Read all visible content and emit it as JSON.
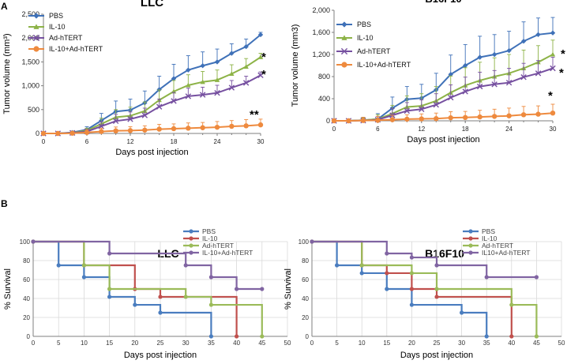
{
  "colors": {
    "pbs": "#3f71b8",
    "il10": "#8db347",
    "adhtert": "#7650a0",
    "combo": "#ee8a3e",
    "surv_pbs": "#4a7dbf",
    "surv_il10": "#c0504d",
    "surv_adhtert": "#9bbb59",
    "surv_combo": "#8064a2",
    "grid": "#d9d9d9",
    "axis": "#7f7f7f"
  },
  "panels": [
    {
      "label": "A"
    },
    {
      "label": "B"
    }
  ],
  "chart_data": [
    {
      "type": "line",
      "panel": "A",
      "title": "LLC",
      "xlabel": "Days post injection",
      "ylabel": "Tumor volume (mm³)",
      "xlim": [
        0,
        30
      ],
      "ylim": [
        0,
        2500
      ],
      "xticks": [
        "0",
        "6",
        "12",
        "18",
        "24",
        "30"
      ],
      "yticks": [
        "0",
        "500",
        "1,000",
        "1,500",
        "2,000",
        "2,500"
      ],
      "x": [
        0,
        2,
        4,
        6,
        8,
        10,
        12,
        14,
        16,
        18,
        20,
        22,
        24,
        26,
        28,
        30
      ],
      "series": [
        {
          "name": "PBS",
          "marker": "diamond",
          "values": [
            0,
            0,
            20,
            80,
            270,
            460,
            490,
            640,
            920,
            1150,
            1330,
            1420,
            1500,
            1680,
            1820,
            2070
          ],
          "err_up": [
            0,
            0,
            30,
            60,
            150,
            220,
            230,
            250,
            280,
            300,
            300,
            290,
            270,
            200,
            160,
            50
          ]
        },
        {
          "name": "IL-10",
          "marker": "triangle",
          "values": [
            0,
            0,
            15,
            60,
            200,
            340,
            370,
            470,
            700,
            880,
            1010,
            1080,
            1120,
            1250,
            1400,
            1600
          ],
          "err_up": [
            0,
            0,
            25,
            50,
            120,
            160,
            180,
            190,
            210,
            230,
            220,
            220,
            210,
            190,
            170,
            80
          ]
        },
        {
          "name": "Ad-hTERT",
          "marker": "x",
          "values": [
            0,
            0,
            12,
            40,
            150,
            260,
            300,
            380,
            560,
            680,
            780,
            810,
            850,
            960,
            1060,
            1220
          ],
          "err_up": [
            0,
            0,
            20,
            40,
            100,
            140,
            150,
            150,
            160,
            180,
            170,
            160,
            160,
            150,
            140,
            70
          ]
        },
        {
          "name": "IL-10+Ad-hTERT",
          "marker": "circle",
          "values": [
            0,
            0,
            5,
            20,
            40,
            55,
            60,
            70,
            90,
            100,
            110,
            120,
            130,
            150,
            160,
            180
          ],
          "err_up": [
            0,
            0,
            15,
            60,
            70,
            80,
            80,
            90,
            100,
            100,
            110,
            110,
            120,
            120,
            130,
            120
          ]
        }
      ],
      "annotations": [
        "*",
        "*",
        "**"
      ]
    },
    {
      "type": "line",
      "panel": "A",
      "title": "B16F10",
      "xlabel": "Days post injection",
      "ylabel": "Tumor volume (mm3)",
      "xlim": [
        0,
        30
      ],
      "ylim": [
        0,
        2000
      ],
      "xticks": [
        "0",
        "6",
        "12",
        "18",
        "24",
        "30"
      ],
      "yticks": [
        "0",
        "400",
        "800",
        "1,200",
        "1,600",
        "2,000"
      ],
      "x": [
        0,
        2,
        4,
        6,
        8,
        10,
        12,
        14,
        16,
        18,
        20,
        22,
        24,
        26,
        28,
        30
      ],
      "series": [
        {
          "name": "PBS",
          "marker": "diamond",
          "values": [
            0,
            0,
            10,
            30,
            230,
            390,
            410,
            560,
            840,
            1000,
            1150,
            1200,
            1270,
            1440,
            1560,
            1590
          ],
          "err_up": [
            0,
            0,
            50,
            100,
            200,
            230,
            250,
            300,
            350,
            380,
            380,
            360,
            350,
            350,
            300,
            280
          ]
        },
        {
          "name": "IL-10",
          "marker": "triangle",
          "values": [
            0,
            0,
            10,
            30,
            130,
            250,
            270,
            360,
            510,
            640,
            730,
            800,
            860,
            950,
            1060,
            1200
          ],
          "err_up": [
            0,
            0,
            40,
            80,
            150,
            200,
            220,
            260,
            300,
            320,
            330,
            340,
            340,
            330,
            300,
            260
          ]
        },
        {
          "name": "Ad-hTERT",
          "marker": "x",
          "values": [
            0,
            0,
            5,
            20,
            100,
            180,
            210,
            290,
            420,
            530,
            620,
            660,
            690,
            790,
            860,
            950
          ],
          "err_up": [
            0,
            0,
            30,
            60,
            120,
            150,
            170,
            200,
            230,
            260,
            260,
            250,
            260,
            250,
            230,
            200
          ]
        },
        {
          "name": "IL-10+Ad-hTERT",
          "marker": "circle",
          "values": [
            0,
            0,
            5,
            10,
            20,
            30,
            35,
            40,
            55,
            60,
            70,
            80,
            90,
            110,
            120,
            140
          ],
          "err_up": [
            0,
            0,
            60,
            70,
            80,
            80,
            90,
            100,
            110,
            110,
            120,
            130,
            140,
            150,
            150,
            160
          ]
        }
      ],
      "annotations": [
        "*",
        "*",
        "*"
      ]
    },
    {
      "type": "line",
      "panel": "B",
      "title": "LLC",
      "xlabel": "Days post injection",
      "ylabel": "% Survival",
      "xlim": [
        0,
        50
      ],
      "ylim": [
        0,
        100
      ],
      "xticks": [
        "0",
        "5",
        "10",
        "15",
        "20",
        "25",
        "30",
        "35",
        "40",
        "45",
        "50"
      ],
      "yticks": [
        "0",
        "20",
        "40",
        "60",
        "80",
        "100"
      ],
      "step": true,
      "series": [
        {
          "name": "PBS",
          "x": [
            0,
            5,
            10,
            15,
            20,
            25,
            35
          ],
          "values": [
            100,
            75,
            62.5,
            41.7,
            33.3,
            25,
            0
          ]
        },
        {
          "name": "IL-10",
          "x": [
            0,
            10,
            20,
            25,
            40
          ],
          "values": [
            100,
            75,
            50,
            41.7,
            0
          ]
        },
        {
          "name": "Ad-hTERT",
          "x": [
            0,
            10,
            15,
            30,
            35,
            45
          ],
          "values": [
            100,
            75,
            50,
            41.7,
            33.3,
            0
          ]
        },
        {
          "name": "IL-10+Ad-hTERT",
          "x": [
            0,
            15,
            30,
            35,
            40,
            45
          ],
          "values": [
            100,
            87.5,
            75,
            62.5,
            50,
            50
          ]
        }
      ]
    },
    {
      "type": "line",
      "panel": "B",
      "title": "B16F10",
      "xlabel": "Days post injection",
      "ylabel": "% Survival",
      "xlim": [
        0,
        50
      ],
      "ylim": [
        0,
        100
      ],
      "xticks": [
        "0",
        "5",
        "10",
        "15",
        "20",
        "25",
        "30",
        "35",
        "40",
        "45",
        "50"
      ],
      "yticks": [
        "0",
        "20",
        "40",
        "60",
        "80",
        "100"
      ],
      "step": true,
      "series": [
        {
          "name": "PBS",
          "x": [
            0,
            5,
            10,
            15,
            20,
            30,
            35
          ],
          "values": [
            100,
            75,
            66.7,
            50,
            33.3,
            25,
            0
          ]
        },
        {
          "name": "IL-10",
          "x": [
            0,
            10,
            15,
            20,
            25,
            40
          ],
          "values": [
            100,
            75,
            66.7,
            50,
            41.7,
            0
          ]
        },
        {
          "name": "Ad-hTERT",
          "x": [
            0,
            10,
            20,
            25,
            40,
            45
          ],
          "values": [
            100,
            75,
            66.7,
            50,
            33.3,
            0
          ]
        },
        {
          "name": "IL10+Ad-hTERT",
          "x": [
            0,
            15,
            20,
            25,
            35,
            45
          ],
          "values": [
            100,
            87.5,
            83.3,
            75,
            62.5,
            62.5
          ]
        }
      ]
    }
  ]
}
